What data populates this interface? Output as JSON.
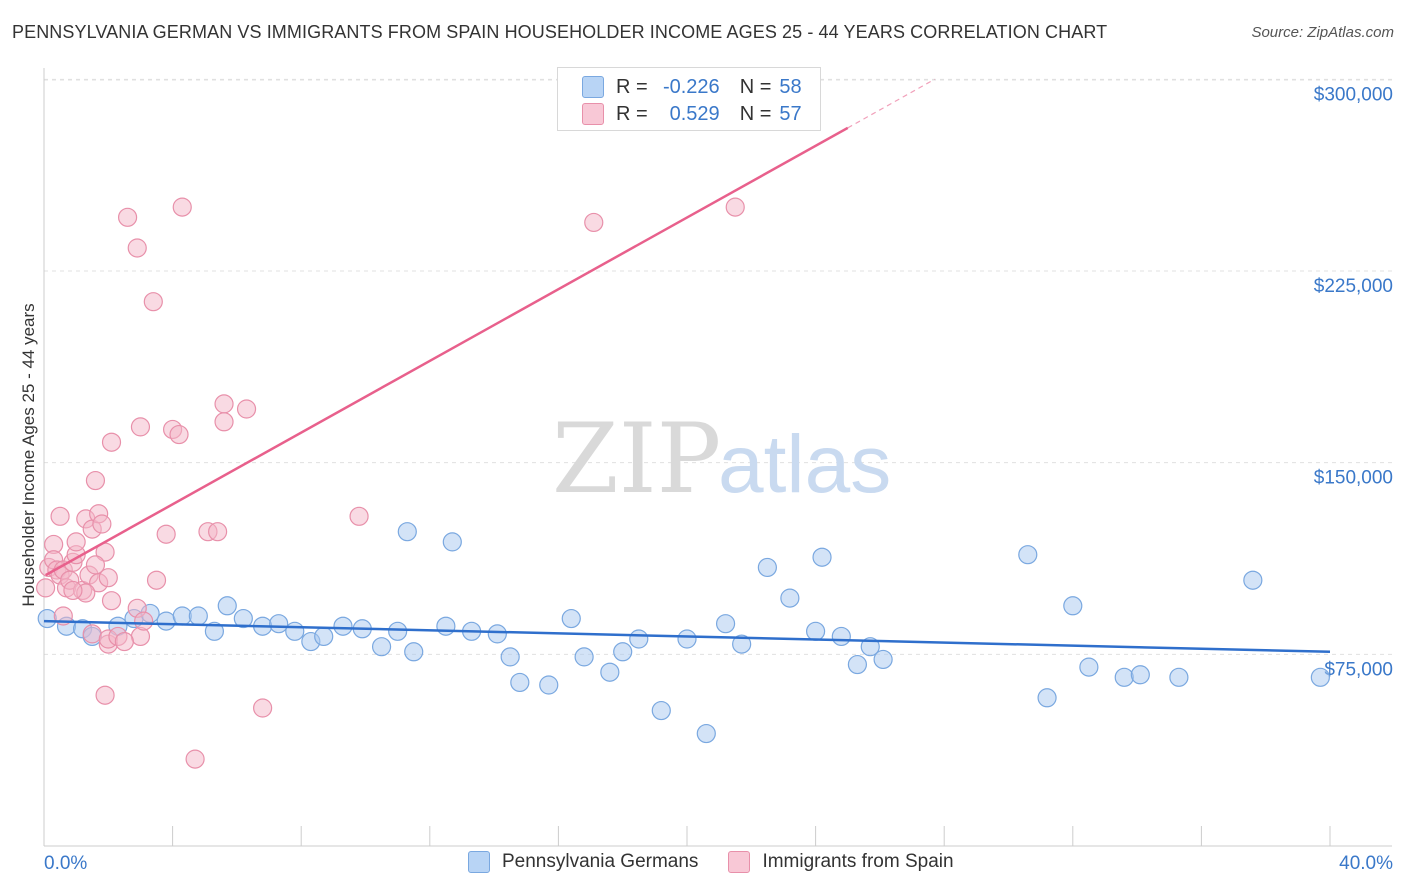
{
  "title": "PENNSYLVANIA GERMAN VS IMMIGRANTS FROM SPAIN HOUSEHOLDER INCOME AGES 25 - 44 YEARS CORRELATION CHART",
  "source": "Source: ZipAtlas.com",
  "watermark": {
    "zip": "ZIP",
    "atlas": "atlas"
  },
  "legend": {
    "rows": [
      {
        "r_label": "R =",
        "r_value": "-0.226",
        "n_label": "N =",
        "n_value": "58",
        "color": "#a8c8f0"
      },
      {
        "r_label": "R =",
        "r_value": "0.529",
        "n_label": "N =",
        "n_value": "57",
        "color": "#f4b6c8"
      }
    ]
  },
  "bottom_legend": [
    "Pennsylvania Germans",
    "Immigrants from Spain"
  ],
  "chart_data": {
    "type": "scatter",
    "title": "PENNSYLVANIA GERMAN VS IMMIGRANTS FROM SPAIN HOUSEHOLDER INCOME AGES 25 - 44 YEARS CORRELATION CHART",
    "xlabel": "",
    "ylabel": "Householder Income Ages 25 - 44 years",
    "xlim": [
      0,
      40
    ],
    "ylim": [
      0,
      307000
    ],
    "x_tick_labels": [
      "0.0%",
      "40.0%"
    ],
    "y_ticks": [
      75000,
      150000,
      225000,
      300000
    ],
    "y_tick_labels": [
      "$75,000",
      "$150,000",
      "$225,000",
      "$300,000"
    ],
    "grid": "horizontal dashed",
    "legend_position": "top-center",
    "series": [
      {
        "name": "Pennsylvania Germans",
        "color": "#a8c8f0",
        "stroke": "#7aa8e0",
        "trend": {
          "x": [
            0,
            40
          ],
          "y": [
            88000,
            76000
          ],
          "color": "#2f6fcc"
        },
        "points": [
          [
            0.1,
            89000
          ],
          [
            0.7,
            86000
          ],
          [
            1.2,
            85000
          ],
          [
            1.5,
            82000
          ],
          [
            2.3,
            86000
          ],
          [
            2.8,
            89000
          ],
          [
            3.3,
            91000
          ],
          [
            3.8,
            88000
          ],
          [
            4.3,
            90000
          ],
          [
            4.8,
            90000
          ],
          [
            5.3,
            84000
          ],
          [
            5.7,
            94000
          ],
          [
            6.2,
            89000
          ],
          [
            6.8,
            86000
          ],
          [
            7.3,
            87000
          ],
          [
            7.8,
            84000
          ],
          [
            8.3,
            80000
          ],
          [
            8.7,
            82000
          ],
          [
            9.3,
            86000
          ],
          [
            9.9,
            85000
          ],
          [
            10.5,
            78000
          ],
          [
            11.0,
            84000
          ],
          [
            11.5,
            76000
          ],
          [
            11.3,
            123000
          ],
          [
            12.5,
            86000
          ],
          [
            12.7,
            119000
          ],
          [
            13.3,
            84000
          ],
          [
            14.1,
            83000
          ],
          [
            14.5,
            74000
          ],
          [
            14.8,
            64000
          ],
          [
            15.7,
            63000
          ],
          [
            16.4,
            89000
          ],
          [
            16.8,
            74000
          ],
          [
            17.6,
            68000
          ],
          [
            18.0,
            76000
          ],
          [
            18.5,
            81000
          ],
          [
            19.2,
            53000
          ],
          [
            20.0,
            81000
          ],
          [
            20.6,
            44000
          ],
          [
            21.2,
            87000
          ],
          [
            21.7,
            79000
          ],
          [
            22.5,
            109000
          ],
          [
            23.2,
            97000
          ],
          [
            24.0,
            84000
          ],
          [
            24.2,
            113000
          ],
          [
            24.8,
            82000
          ],
          [
            25.3,
            71000
          ],
          [
            25.7,
            78000
          ],
          [
            26.1,
            73000
          ],
          [
            30.6,
            114000
          ],
          [
            31.2,
            58000
          ],
          [
            32.0,
            94000
          ],
          [
            32.5,
            70000
          ],
          [
            33.6,
            66000
          ],
          [
            34.1,
            67000
          ],
          [
            35.3,
            66000
          ],
          [
            37.6,
            104000
          ],
          [
            39.7,
            66000
          ]
        ]
      },
      {
        "name": "Immigrants from Spain",
        "color": "#f4b6c8",
        "stroke": "#e890aa",
        "trend": {
          "x": [
            0.05,
            25.0
          ],
          "y": [
            106000,
            281000
          ],
          "dash_to": [
            27.7,
            300000
          ],
          "color": "#e8608c"
        },
        "points": [
          [
            0.05,
            101000
          ],
          [
            0.15,
            109000
          ],
          [
            0.3,
            118000
          ],
          [
            0.3,
            112000
          ],
          [
            0.4,
            108000
          ],
          [
            0.5,
            106000
          ],
          [
            0.5,
            129000
          ],
          [
            0.6,
            108000
          ],
          [
            0.7,
            101000
          ],
          [
            0.8,
            104000
          ],
          [
            0.9,
            111000
          ],
          [
            1.0,
            114000
          ],
          [
            1.0,
            119000
          ],
          [
            1.2,
            100000
          ],
          [
            1.3,
            128000
          ],
          [
            1.4,
            106000
          ],
          [
            1.5,
            83000
          ],
          [
            1.5,
            124000
          ],
          [
            1.6,
            143000
          ],
          [
            1.7,
            130000
          ],
          [
            1.8,
            126000
          ],
          [
            1.9,
            115000
          ],
          [
            1.7,
            103000
          ],
          [
            2.0,
            79000
          ],
          [
            2.0,
            105000
          ],
          [
            2.1,
            96000
          ],
          [
            1.9,
            59000
          ],
          [
            2.0,
            81000
          ],
          [
            2.1,
            158000
          ],
          [
            2.3,
            82000
          ],
          [
            2.6,
            246000
          ],
          [
            2.9,
            93000
          ],
          [
            2.9,
            234000
          ],
          [
            3.0,
            164000
          ],
          [
            3.0,
            82000
          ],
          [
            3.4,
            213000
          ],
          [
            3.5,
            104000
          ],
          [
            3.8,
            122000
          ],
          [
            4.0,
            163000
          ],
          [
            4.2,
            161000
          ],
          [
            4.3,
            250000
          ],
          [
            4.7,
            34000
          ],
          [
            5.1,
            123000
          ],
          [
            5.4,
            123000
          ],
          [
            5.6,
            166000
          ],
          [
            5.6,
            173000
          ],
          [
            6.3,
            171000
          ],
          [
            6.8,
            54000
          ],
          [
            9.8,
            129000
          ],
          [
            17.1,
            244000
          ],
          [
            21.5,
            250000
          ],
          [
            1.3,
            99000
          ],
          [
            0.9,
            100000
          ],
          [
            1.6,
            110000
          ],
          [
            0.6,
            90000
          ],
          [
            2.5,
            80000
          ],
          [
            3.1,
            88000
          ]
        ]
      }
    ]
  }
}
